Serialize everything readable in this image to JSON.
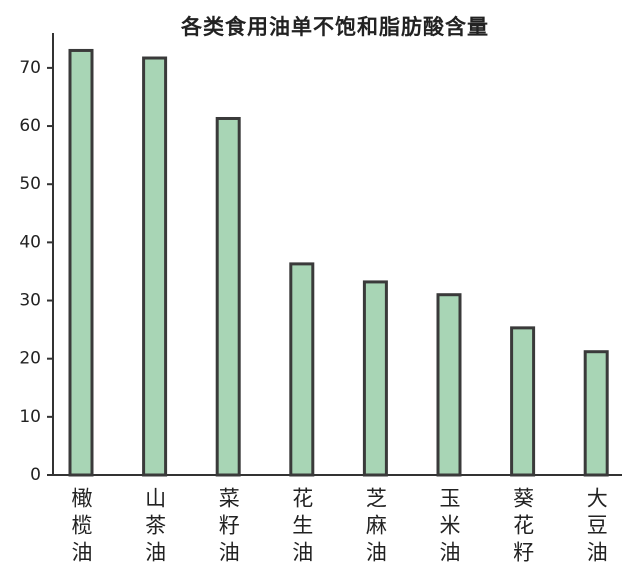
{
  "chart_data": {
    "type": "bar",
    "title": "各类食用油单不饱和脂肪酸含量",
    "categories": [
      "橄榄油",
      "山茶油",
      "菜籽油",
      "花生油",
      "芝麻油",
      "玉米油",
      "葵花籽",
      "大豆油"
    ],
    "values": [
      73,
      71.7,
      61.3,
      36.3,
      33.2,
      31,
      25.3,
      21.2
    ],
    "color": "#a8d5b5",
    "ylim": [
      0,
      76
    ],
    "yticks": [
      0,
      10,
      20,
      30,
      40,
      50,
      60,
      70
    ],
    "grid": false
  }
}
